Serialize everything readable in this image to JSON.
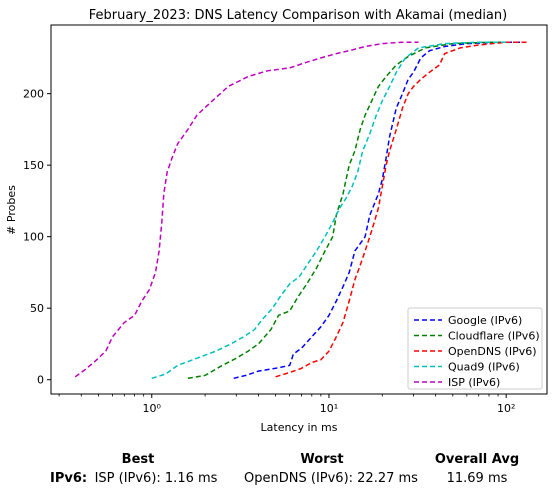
{
  "chart_data": {
    "type": "line",
    "title": "February_2023: DNS Latency Comparison with Akamai (median)",
    "xlabel": "Latency in ms",
    "ylabel": "# Probes",
    "xscale": "log",
    "xlim": [
      0.27,
      170
    ],
    "ylim": [
      -10,
      248
    ],
    "xticks": [
      {
        "value": 1,
        "label": "10⁰"
      },
      {
        "value": 10,
        "label": "10¹"
      },
      {
        "value": 100,
        "label": "10²"
      }
    ],
    "yticks": [
      0,
      50,
      100,
      150,
      200
    ],
    "grid": false,
    "legend_position": "bottom-right",
    "series": [
      {
        "name": "Google (IPv6)",
        "color": "#0000ff",
        "points": [
          [
            2.9,
            1
          ],
          [
            3.4,
            3
          ],
          [
            4,
            6
          ],
          [
            5,
            8
          ],
          [
            6,
            10
          ],
          [
            6.3,
            18
          ],
          [
            7,
            22
          ],
          [
            8,
            30
          ],
          [
            9,
            37
          ],
          [
            10,
            45
          ],
          [
            11,
            55
          ],
          [
            12,
            65
          ],
          [
            13,
            75
          ],
          [
            14,
            90
          ],
          [
            16,
            100
          ],
          [
            17,
            115
          ],
          [
            19,
            130
          ],
          [
            20,
            140
          ],
          [
            21,
            155
          ],
          [
            22,
            170
          ],
          [
            24,
            190
          ],
          [
            26,
            200
          ],
          [
            28,
            210
          ],
          [
            30,
            215
          ],
          [
            33,
            225
          ],
          [
            37,
            230
          ],
          [
            45,
            233
          ],
          [
            60,
            235
          ],
          [
            90,
            236
          ],
          [
            130,
            236
          ]
        ]
      },
      {
        "name": "Cloudflare (IPv6)",
        "color": "#008000",
        "points": [
          [
            1.6,
            1
          ],
          [
            2,
            3
          ],
          [
            2.5,
            10
          ],
          [
            3,
            15
          ],
          [
            3.5,
            20
          ],
          [
            4,
            25
          ],
          [
            4.7,
            35
          ],
          [
            5.2,
            45
          ],
          [
            6,
            48
          ],
          [
            6.7,
            58
          ],
          [
            7.5,
            67
          ],
          [
            8.5,
            78
          ],
          [
            9.5,
            90
          ],
          [
            10.5,
            100
          ],
          [
            11,
            115
          ],
          [
            12,
            130
          ],
          [
            13,
            150
          ],
          [
            14,
            160
          ],
          [
            15,
            175
          ],
          [
            16,
            185
          ],
          [
            17,
            192
          ],
          [
            19,
            205
          ],
          [
            21,
            212
          ],
          [
            24,
            220
          ],
          [
            28,
            226
          ],
          [
            35,
            232
          ],
          [
            50,
            235
          ],
          [
            80,
            236
          ],
          [
            110,
            236
          ]
        ]
      },
      {
        "name": "OpenDNS (IPv6)",
        "color": "#ff0000",
        "points": [
          [
            5,
            2
          ],
          [
            6,
            5
          ],
          [
            7,
            8
          ],
          [
            8,
            12
          ],
          [
            9,
            14
          ],
          [
            10,
            20
          ],
          [
            11,
            30
          ],
          [
            12,
            40
          ],
          [
            13,
            55
          ],
          [
            14,
            70
          ],
          [
            15,
            80
          ],
          [
            16,
            90
          ],
          [
            17,
            100
          ],
          [
            18,
            110
          ],
          [
            19,
            120
          ],
          [
            20,
            135
          ],
          [
            21,
            150
          ],
          [
            22,
            160
          ],
          [
            24,
            175
          ],
          [
            26,
            190
          ],
          [
            28,
            200
          ],
          [
            30,
            205
          ],
          [
            33,
            210
          ],
          [
            37,
            215
          ],
          [
            42,
            220
          ],
          [
            45,
            228
          ],
          [
            55,
            232
          ],
          [
            70,
            234
          ],
          [
            100,
            236
          ],
          [
            130,
            236
          ]
        ]
      },
      {
        "name": "Quad9 (IPv6)",
        "color": "#00bfbf",
        "points": [
          [
            1,
            1
          ],
          [
            1.2,
            4
          ],
          [
            1.4,
            10
          ],
          [
            1.8,
            15
          ],
          [
            2.3,
            20
          ],
          [
            2.8,
            25
          ],
          [
            3.3,
            30
          ],
          [
            3.8,
            35
          ],
          [
            4.2,
            42
          ],
          [
            4.8,
            50
          ],
          [
            5.3,
            58
          ],
          [
            6,
            67
          ],
          [
            6.8,
            72
          ],
          [
            7.5,
            80
          ],
          [
            8.5,
            90
          ],
          [
            9.5,
            100
          ],
          [
            10.5,
            110
          ],
          [
            11.5,
            120
          ],
          [
            12.5,
            127
          ],
          [
            13.5,
            135
          ],
          [
            14.5,
            145
          ],
          [
            15.5,
            160
          ],
          [
            17,
            172
          ],
          [
            18.5,
            185
          ],
          [
            20,
            195
          ],
          [
            22,
            205
          ],
          [
            24,
            215
          ],
          [
            27,
            225
          ],
          [
            32,
            232
          ],
          [
            45,
            235
          ],
          [
            70,
            236
          ],
          [
            100,
            236
          ]
        ]
      },
      {
        "name": "ISP (IPv6)",
        "color": "#bf00bf",
        "points": [
          [
            0.37,
            2
          ],
          [
            0.42,
            7
          ],
          [
            0.48,
            13
          ],
          [
            0.55,
            20
          ],
          [
            0.6,
            30
          ],
          [
            0.7,
            40
          ],
          [
            0.8,
            45
          ],
          [
            0.88,
            55
          ],
          [
            0.97,
            63
          ],
          [
            1.05,
            75
          ],
          [
            1.1,
            90
          ],
          [
            1.14,
            110
          ],
          [
            1.17,
            130
          ],
          [
            1.22,
            145
          ],
          [
            1.3,
            155
          ],
          [
            1.4,
            165
          ],
          [
            1.6,
            175
          ],
          [
            1.8,
            185
          ],
          [
            2.2,
            195
          ],
          [
            2.7,
            205
          ],
          [
            3.5,
            212
          ],
          [
            4.5,
            216
          ],
          [
            6,
            218
          ],
          [
            7.5,
            222
          ],
          [
            9,
            225
          ],
          [
            11,
            228
          ],
          [
            13,
            230
          ],
          [
            16,
            233
          ],
          [
            20,
            235
          ],
          [
            26,
            236
          ],
          [
            32,
            236
          ]
        ]
      }
    ]
  },
  "summary": {
    "row_label": "IPv6:",
    "best": {
      "header": "Best",
      "value": "ISP (IPv6): 1.16 ms"
    },
    "worst": {
      "header": "Worst",
      "value": "OpenDNS (IPv6): 22.27 ms"
    },
    "overall": {
      "header": "Overall Avg",
      "value": "11.69 ms"
    }
  }
}
